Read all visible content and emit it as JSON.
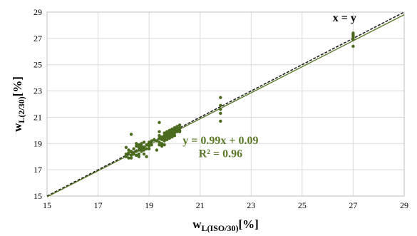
{
  "chart_data": {
    "type": "scatter",
    "xlabel": {
      "base": "w",
      "subscript": "L(ISO/30)",
      "unit": "[%]"
    },
    "ylabel": {
      "base": "w",
      "subscript": "L(2/30)",
      "unit": "[%]"
    },
    "xlim": [
      15,
      29
    ],
    "ylim": [
      15,
      29
    ],
    "xticks": [
      "15",
      "17",
      "19",
      "21",
      "23",
      "25",
      "27",
      "29"
    ],
    "yticks": [
      "15",
      "17",
      "19",
      "21",
      "23",
      "25",
      "27",
      "29"
    ],
    "grid": true,
    "lines": [
      {
        "label": "x = y",
        "slope": 1,
        "intercept": 0,
        "style": "dashed"
      },
      {
        "label": "fit",
        "slope": 0.99,
        "intercept": 0.09,
        "style": "solid"
      }
    ],
    "annotations": {
      "identity_label": "x = y",
      "equation": "y = 0.99x + 0.09",
      "r2": "R² = 0.96"
    },
    "series": [
      {
        "color": "#4a6a1e",
        "points": [
          [
            18.1,
            18.0
          ],
          [
            18.1,
            18.2
          ],
          [
            18.2,
            18.3
          ],
          [
            18.2,
            17.9
          ],
          [
            18.3,
            18.1
          ],
          [
            18.3,
            18.4
          ],
          [
            18.3,
            17.9
          ],
          [
            18.4,
            18.2
          ],
          [
            18.4,
            18.6
          ],
          [
            18.4,
            18.3
          ],
          [
            18.5,
            18.4
          ],
          [
            18.5,
            18.1
          ],
          [
            18.5,
            18.8
          ],
          [
            18.5,
            19.0
          ],
          [
            18.6,
            18.5
          ],
          [
            18.6,
            18.2
          ],
          [
            18.6,
            18.7
          ],
          [
            18.6,
            18.9
          ],
          [
            18.7,
            18.8
          ],
          [
            18.7,
            18.4
          ],
          [
            18.7,
            19.0
          ],
          [
            18.7,
            18.6
          ],
          [
            18.8,
            18.7
          ],
          [
            18.8,
            18.5
          ],
          [
            18.8,
            19.1
          ],
          [
            18.8,
            18.2
          ],
          [
            18.9,
            18.9
          ],
          [
            18.9,
            18.6
          ],
          [
            19.0,
            19.0
          ],
          [
            19.0,
            18.8
          ],
          [
            19.0,
            19.1
          ],
          [
            19.0,
            18.6
          ],
          [
            19.1,
            19.2
          ],
          [
            19.1,
            18.9
          ],
          [
            19.2,
            19.3
          ],
          [
            18.3,
            19.7
          ],
          [
            18.1,
            18.7
          ],
          [
            18.2,
            18.5
          ],
          [
            18.9,
            18.0
          ],
          [
            18.6,
            18.0
          ],
          [
            19.4,
            19.4
          ],
          [
            19.4,
            19.1
          ],
          [
            19.4,
            19.6
          ],
          [
            19.5,
            19.3
          ],
          [
            19.5,
            19.5
          ],
          [
            19.5,
            19.0
          ],
          [
            19.6,
            19.6
          ],
          [
            19.6,
            19.4
          ],
          [
            19.6,
            19.8
          ],
          [
            19.6,
            19.2
          ],
          [
            19.7,
            19.5
          ],
          [
            19.7,
            19.7
          ],
          [
            19.7,
            19.9
          ],
          [
            19.7,
            19.3
          ],
          [
            19.8,
            19.8
          ],
          [
            19.8,
            19.6
          ],
          [
            19.8,
            20.0
          ],
          [
            19.8,
            19.4
          ],
          [
            19.9,
            19.9
          ],
          [
            19.9,
            19.7
          ],
          [
            19.9,
            20.1
          ],
          [
            19.9,
            19.5
          ],
          [
            20.0,
            20.0
          ],
          [
            20.0,
            19.8
          ],
          [
            20.0,
            20.2
          ],
          [
            20.0,
            19.6
          ],
          [
            20.1,
            20.1
          ],
          [
            20.1,
            19.9
          ],
          [
            20.1,
            20.3
          ],
          [
            20.2,
            20.2
          ],
          [
            20.2,
            20.0
          ],
          [
            20.2,
            20.4
          ],
          [
            20.2,
            19.9
          ],
          [
            19.4,
            20.6
          ],
          [
            19.4,
            19.9
          ],
          [
            19.4,
            18.9
          ],
          [
            19.5,
            18.8
          ],
          [
            19.3,
            19.2
          ],
          [
            19.6,
            18.9
          ],
          [
            19.3,
            18.5
          ],
          [
            21.8,
            22.5
          ],
          [
            21.8,
            21.9
          ],
          [
            21.8,
            21.6
          ],
          [
            21.8,
            21.3
          ],
          [
            21.8,
            20.7
          ],
          [
            27.0,
            27.4
          ],
          [
            27.0,
            27.3
          ],
          [
            27.0,
            27.2
          ],
          [
            27.0,
            27.1
          ],
          [
            27.0,
            27.0
          ],
          [
            27.0,
            26.9
          ],
          [
            27.0,
            26.4
          ]
        ]
      }
    ]
  }
}
